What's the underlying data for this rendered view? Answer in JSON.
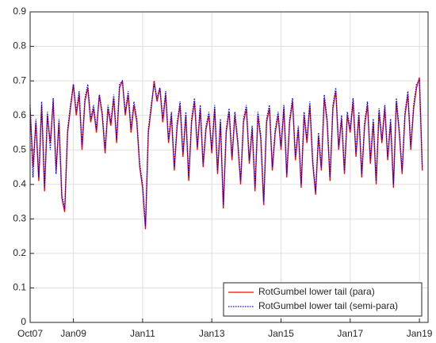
{
  "chart_data": {
    "type": "line",
    "x": [
      "2007-10",
      "2007-11",
      "2007-12",
      "2008-01",
      "2008-02",
      "2008-03",
      "2008-04",
      "2008-05",
      "2008-06",
      "2008-07",
      "2008-08",
      "2008-09",
      "2008-10",
      "2008-11",
      "2008-12",
      "2009-01",
      "2009-02",
      "2009-03",
      "2009-04",
      "2009-05",
      "2009-06",
      "2009-07",
      "2009-08",
      "2009-09",
      "2009-10",
      "2009-11",
      "2009-12",
      "2010-01",
      "2010-02",
      "2010-03",
      "2010-04",
      "2010-05",
      "2010-06",
      "2010-07",
      "2010-08",
      "2010-09",
      "2010-10",
      "2010-11",
      "2010-12",
      "2011-01",
      "2011-02",
      "2011-03",
      "2011-04",
      "2011-05",
      "2011-06",
      "2011-07",
      "2011-08",
      "2011-09",
      "2011-10",
      "2011-11",
      "2011-12",
      "2012-01",
      "2012-02",
      "2012-03",
      "2012-04",
      "2012-05",
      "2012-06",
      "2012-07",
      "2012-08",
      "2012-09",
      "2012-10",
      "2012-11",
      "2012-12",
      "2013-01",
      "2013-02",
      "2013-03",
      "2013-04",
      "2013-05",
      "2013-06",
      "2013-07",
      "2013-08",
      "2013-09",
      "2013-10",
      "2013-11",
      "2013-12",
      "2014-01",
      "2014-02",
      "2014-03",
      "2014-04",
      "2014-05",
      "2014-06",
      "2014-07",
      "2014-08",
      "2014-09",
      "2014-10",
      "2014-11",
      "2014-12",
      "2015-01",
      "2015-02",
      "2015-03",
      "2015-04",
      "2015-05",
      "2015-06",
      "2015-07",
      "2015-08",
      "2015-09",
      "2015-10",
      "2015-11",
      "2015-12",
      "2016-01",
      "2016-02",
      "2016-03",
      "2016-04",
      "2016-05",
      "2016-06",
      "2016-07",
      "2016-08",
      "2016-09",
      "2016-10",
      "2016-11",
      "2016-12",
      "2017-01",
      "2017-02",
      "2017-03",
      "2017-04",
      "2017-05",
      "2017-06",
      "2017-07",
      "2017-08",
      "2017-09",
      "2017-10",
      "2017-11",
      "2017-12",
      "2018-01",
      "2018-02",
      "2018-03",
      "2018-04",
      "2018-05",
      "2018-06",
      "2018-07",
      "2018-08",
      "2018-09",
      "2018-10",
      "2018-11",
      "2018-12",
      "2019-01",
      "2019-02"
    ],
    "series": [
      {
        "name": "RotGumbel lower tail (para)",
        "color": "#ff0000",
        "linestyle": "solid",
        "values": [
          0.62,
          0.45,
          0.58,
          0.41,
          0.63,
          0.38,
          0.6,
          0.52,
          0.64,
          0.44,
          0.58,
          0.36,
          0.32,
          0.55,
          0.62,
          0.69,
          0.6,
          0.66,
          0.5,
          0.64,
          0.68,
          0.58,
          0.62,
          0.55,
          0.66,
          0.6,
          0.49,
          0.62,
          0.57,
          0.65,
          0.52,
          0.68,
          0.7,
          0.6,
          0.66,
          0.55,
          0.63,
          0.58,
          0.45,
          0.39,
          0.27,
          0.55,
          0.62,
          0.7,
          0.64,
          0.68,
          0.58,
          0.66,
          0.52,
          0.6,
          0.44,
          0.57,
          0.63,
          0.48,
          0.6,
          0.41,
          0.58,
          0.64,
          0.5,
          0.62,
          0.45,
          0.56,
          0.6,
          0.49,
          0.62,
          0.43,
          0.58,
          0.33,
          0.55,
          0.61,
          0.47,
          0.6,
          0.52,
          0.4,
          0.58,
          0.62,
          0.46,
          0.56,
          0.38,
          0.6,
          0.53,
          0.34,
          0.58,
          0.62,
          0.44,
          0.55,
          0.6,
          0.5,
          0.62,
          0.42,
          0.58,
          0.64,
          0.47,
          0.56,
          0.39,
          0.6,
          0.52,
          0.63,
          0.46,
          0.37,
          0.54,
          0.44,
          0.65,
          0.58,
          0.41,
          0.62,
          0.67,
          0.5,
          0.59,
          0.43,
          0.6,
          0.55,
          0.64,
          0.48,
          0.6,
          0.42,
          0.57,
          0.63,
          0.46,
          0.58,
          0.4,
          0.61,
          0.52,
          0.62,
          0.47,
          0.58,
          0.39,
          0.64,
          0.55,
          0.43,
          0.6,
          0.66,
          0.5,
          0.62,
          0.68,
          0.71,
          0.44
        ]
      },
      {
        "name": "RotGumbel lower tail (semi-para)",
        "color": "#0000ff",
        "linestyle": "dotted",
        "values": [
          0.63,
          0.42,
          0.59,
          0.42,
          0.64,
          0.39,
          0.61,
          0.5,
          0.65,
          0.43,
          0.59,
          0.37,
          0.33,
          0.56,
          0.63,
          0.69,
          0.61,
          0.67,
          0.51,
          0.65,
          0.69,
          0.59,
          0.63,
          0.56,
          0.66,
          0.61,
          0.5,
          0.63,
          0.58,
          0.66,
          0.53,
          0.69,
          0.7,
          0.61,
          0.67,
          0.56,
          0.64,
          0.59,
          0.46,
          0.4,
          0.28,
          0.56,
          0.63,
          0.69,
          0.65,
          0.68,
          0.59,
          0.67,
          0.53,
          0.61,
          0.45,
          0.58,
          0.64,
          0.49,
          0.61,
          0.42,
          0.59,
          0.65,
          0.51,
          0.63,
          0.46,
          0.57,
          0.61,
          0.5,
          0.63,
          0.44,
          0.59,
          0.34,
          0.56,
          0.62,
          0.48,
          0.61,
          0.53,
          0.41,
          0.59,
          0.63,
          0.47,
          0.57,
          0.39,
          0.61,
          0.54,
          0.35,
          0.59,
          0.63,
          0.45,
          0.56,
          0.61,
          0.51,
          0.63,
          0.43,
          0.59,
          0.65,
          0.48,
          0.57,
          0.4,
          0.61,
          0.53,
          0.64,
          0.47,
          0.38,
          0.55,
          0.45,
          0.66,
          0.59,
          0.42,
          0.63,
          0.68,
          0.51,
          0.6,
          0.44,
          0.61,
          0.56,
          0.65,
          0.49,
          0.61,
          0.43,
          0.58,
          0.64,
          0.47,
          0.59,
          0.41,
          0.62,
          0.53,
          0.63,
          0.48,
          0.59,
          0.4,
          0.65,
          0.56,
          0.44,
          0.61,
          0.67,
          0.51,
          0.63,
          0.69,
          0.7,
          0.45
        ]
      }
    ],
    "xlim": [
      "2007-10",
      "2019-04"
    ],
    "xticks": [
      {
        "value": "2007-10",
        "label": "Oct07"
      },
      {
        "value": "2009-01",
        "label": "Jan09"
      },
      {
        "value": "2011-01",
        "label": "Jan11"
      },
      {
        "value": "2013-01",
        "label": "Jan13"
      },
      {
        "value": "2015-01",
        "label": "Jan15"
      },
      {
        "value": "2017-01",
        "label": "Jan17"
      },
      {
        "value": "2019-01",
        "label": "Jan19"
      }
    ],
    "ylim": [
      0,
      0.9
    ],
    "yticks": [
      0,
      0.1,
      0.2,
      0.3,
      0.4,
      0.5,
      0.6,
      0.7,
      0.8,
      0.9
    ],
    "grid": true,
    "legend": "lower right"
  }
}
